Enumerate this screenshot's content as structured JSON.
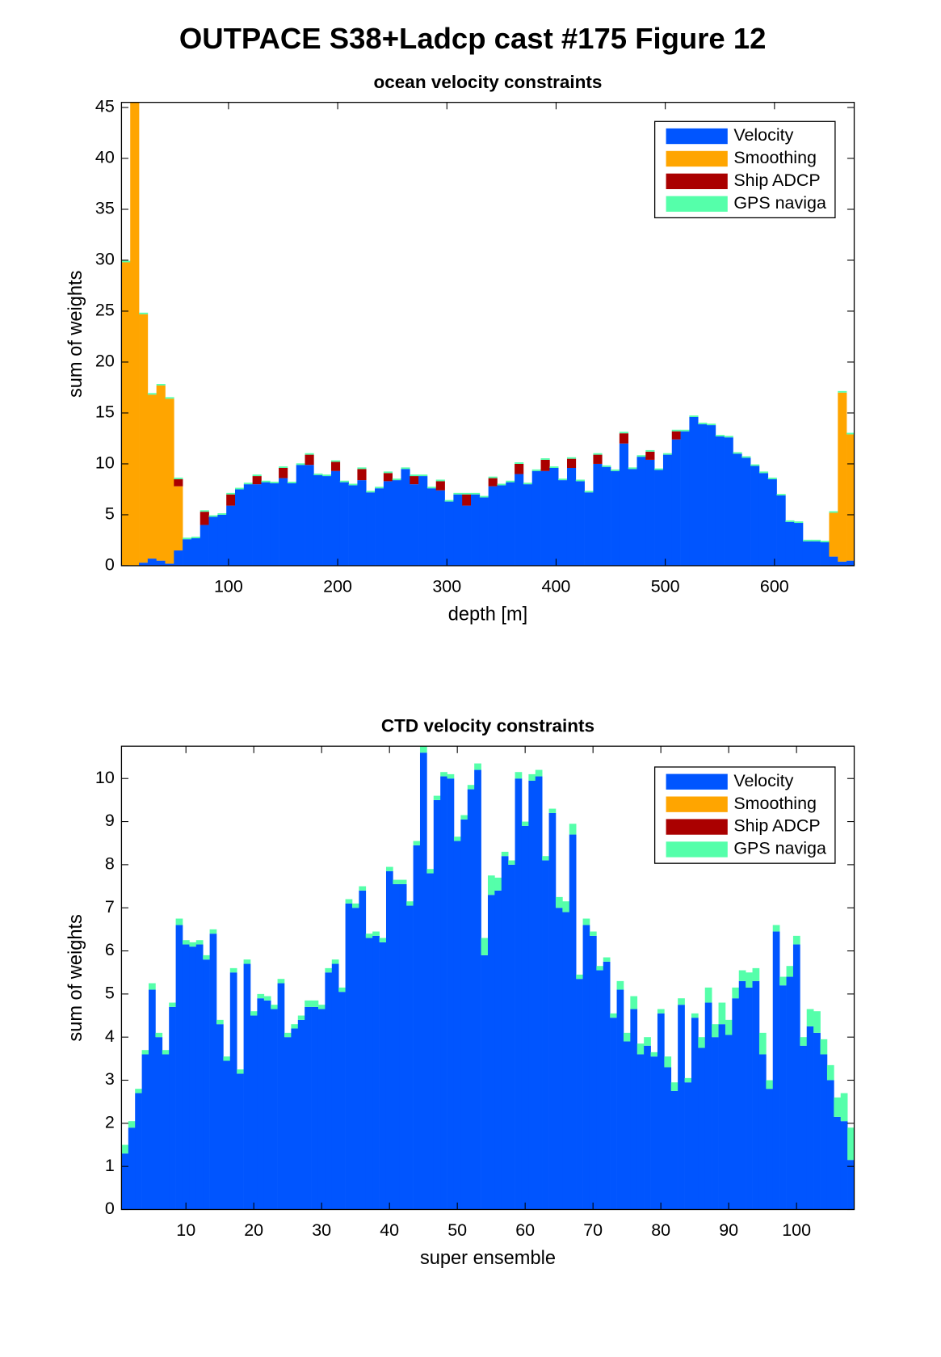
{
  "title": "OUTPACE S38+Ladcp cast #175  Figure 12",
  "chart_data": [
    {
      "type": "stacked_bar",
      "title": "ocean velocity constraints",
      "xlabel": "depth [m]",
      "ylabel": "sum of weights",
      "x": [
        6,
        14,
        22,
        30,
        38,
        46,
        54,
        62,
        70,
        78,
        86,
        94,
        102,
        110,
        118,
        126,
        134,
        142,
        150,
        158,
        166,
        174,
        182,
        190,
        198,
        206,
        214,
        222,
        230,
        238,
        246,
        254,
        262,
        270,
        278,
        286,
        294,
        302,
        310,
        318,
        326,
        334,
        342,
        350,
        358,
        366,
        374,
        382,
        390,
        398,
        406,
        414,
        422,
        430,
        438,
        446,
        454,
        462,
        470,
        478,
        486,
        494,
        502,
        510,
        518,
        526,
        534,
        542,
        550,
        558,
        566,
        574,
        582,
        590,
        598,
        606,
        614,
        622,
        630,
        638,
        646,
        654,
        662,
        670
      ],
      "series": [
        {
          "name": "Velocity",
          "color": "#0055ff",
          "values": [
            0,
            0,
            0.3,
            0.7,
            0.5,
            0.2,
            1.5,
            2.6,
            2.7,
            4.0,
            4.8,
            5.0,
            5.9,
            7.5,
            8.0,
            8.0,
            8.2,
            8.1,
            8.6,
            8.1,
            9.9,
            9.9,
            8.9,
            8.8,
            9.3,
            8.2,
            7.9,
            8.4,
            7.2,
            7.6,
            8.3,
            8.4,
            9.5,
            8.0,
            8.8,
            7.6,
            7.4,
            6.3,
            7.0,
            5.9,
            7.0,
            6.7,
            7.8,
            7.9,
            8.2,
            9.0,
            8.0,
            9.3,
            9.3,
            9.6,
            8.4,
            9.6,
            8.3,
            7.2,
            10.0,
            9.7,
            9.3,
            12.0,
            9.5,
            10.7,
            10.4,
            9.4,
            10.9,
            12.4,
            13.2,
            14.6,
            13.9,
            13.8,
            12.7,
            12.6,
            11.0,
            10.6,
            9.8,
            9.1,
            8.5,
            6.9,
            4.3,
            4.2,
            2.4,
            2.4,
            2.3,
            0.9,
            0.4,
            0.5
          ]
        },
        {
          "name": "Smoothing",
          "color": "#ffa500",
          "values": [
            29.8,
            45.5,
            24.4,
            16.1,
            17.2,
            16.2,
            6.3,
            0,
            0,
            0,
            0,
            0,
            0,
            0,
            0,
            0,
            0,
            0,
            0,
            0,
            0,
            0,
            0,
            0,
            0,
            0,
            0,
            0,
            0,
            0,
            0,
            0,
            0,
            0,
            0,
            0,
            0,
            0,
            0,
            0,
            0,
            0,
            0,
            0,
            0,
            0,
            0,
            0,
            0,
            0,
            0,
            0,
            0,
            0,
            0,
            0,
            0,
            0,
            0,
            0,
            0,
            0,
            0,
            0,
            0,
            0,
            0,
            0,
            0,
            0,
            0,
            0,
            0,
            0,
            0,
            0,
            0,
            0,
            0,
            0,
            0,
            4.3,
            16.6,
            12.4
          ]
        },
        {
          "name": "Ship ADCP",
          "color": "#aa0000",
          "values": [
            0,
            0,
            0,
            0,
            0,
            0,
            0.7,
            0,
            0,
            1.3,
            0,
            0,
            1.1,
            0,
            0,
            0.8,
            0,
            0,
            1.0,
            0,
            0,
            1.0,
            0,
            0,
            0.9,
            0,
            0,
            1.1,
            0,
            0,
            0.8,
            0,
            0,
            0.8,
            0,
            0,
            0.9,
            0,
            0,
            1.1,
            0,
            0,
            0.8,
            0,
            0,
            1.0,
            0,
            0,
            1.1,
            0,
            0,
            0.9,
            0,
            0,
            0.9,
            0,
            0,
            1.0,
            0,
            0,
            0.8,
            0,
            0,
            0.8,
            0,
            0,
            0,
            0,
            0,
            0,
            0,
            0,
            0,
            0,
            0,
            0,
            0,
            0,
            0,
            0,
            0,
            0,
            0,
            0
          ]
        },
        {
          "name": "GPS naviga",
          "color": "#55ffaa",
          "values": [
            0.15,
            0.15,
            0.15,
            0.15,
            0.15,
            0.15,
            0.15,
            0.15,
            0.15,
            0.15,
            0.15,
            0.15,
            0.15,
            0.15,
            0.15,
            0.15,
            0.15,
            0.15,
            0.15,
            0.15,
            0.15,
            0.15,
            0.15,
            0.15,
            0.15,
            0.15,
            0.15,
            0.15,
            0.15,
            0.15,
            0.15,
            0.15,
            0.15,
            0.15,
            0.15,
            0.15,
            0.15,
            0.15,
            0.15,
            0.15,
            0.15,
            0.15,
            0.15,
            0.15,
            0.15,
            0.15,
            0.15,
            0.15,
            0.15,
            0.15,
            0.15,
            0.15,
            0.15,
            0.15,
            0.15,
            0.15,
            0.15,
            0.15,
            0.15,
            0.15,
            0.15,
            0.15,
            0.15,
            0.15,
            0.15,
            0.15,
            0.15,
            0.15,
            0.15,
            0.15,
            0.15,
            0.15,
            0.15,
            0.15,
            0.15,
            0.15,
            0.15,
            0.15,
            0.15,
            0.15,
            0.15,
            0.15,
            0.15,
            0.15
          ]
        }
      ],
      "xlim": [
        2,
        673
      ],
      "xticks": [
        100,
        200,
        300,
        400,
        500,
        600
      ],
      "ylim": [
        0,
        45.5
      ],
      "yticks": [
        0,
        5,
        10,
        15,
        20,
        25,
        30,
        35,
        40,
        45
      ],
      "legend": "northeast"
    },
    {
      "type": "stacked_bar",
      "title": "CTD velocity constraints",
      "xlabel": "super ensemble",
      "ylabel": "sum of weights",
      "x": [
        1,
        2,
        3,
        4,
        5,
        6,
        7,
        8,
        9,
        10,
        11,
        12,
        13,
        14,
        15,
        16,
        17,
        18,
        19,
        20,
        21,
        22,
        23,
        24,
        25,
        26,
        27,
        28,
        29,
        30,
        31,
        32,
        33,
        34,
        35,
        36,
        37,
        38,
        39,
        40,
        41,
        42,
        43,
        44,
        45,
        46,
        47,
        48,
        49,
        50,
        51,
        52,
        53,
        54,
        55,
        56,
        57,
        58,
        59,
        60,
        61,
        62,
        63,
        64,
        65,
        66,
        67,
        68,
        69,
        70,
        71,
        72,
        73,
        74,
        75,
        76,
        77,
        78,
        79,
        80,
        81,
        82,
        83,
        84,
        85,
        86,
        87,
        88,
        89,
        90,
        91,
        92,
        93,
        94,
        95,
        96,
        97,
        98,
        99,
        100,
        101,
        102,
        103,
        104,
        105,
        106,
        107,
        108
      ],
      "series": [
        {
          "name": "Velocity",
          "color": "#0055ff",
          "values": [
            1.3,
            1.9,
            2.7,
            3.6,
            5.1,
            4.0,
            3.6,
            4.7,
            6.6,
            6.15,
            6.1,
            6.15,
            5.8,
            6.4,
            4.3,
            3.45,
            5.5,
            3.15,
            5.7,
            4.5,
            4.9,
            4.85,
            4.65,
            5.25,
            4.0,
            4.2,
            4.4,
            4.7,
            4.7,
            4.65,
            5.5,
            5.7,
            5.05,
            7.1,
            7.0,
            7.4,
            6.3,
            6.35,
            6.2,
            7.85,
            7.55,
            7.55,
            7.05,
            8.45,
            10.6,
            7.8,
            9.5,
            10.05,
            10.0,
            8.55,
            9.05,
            9.75,
            10.2,
            5.9,
            7.3,
            7.4,
            8.2,
            8.0,
            10.0,
            8.9,
            9.95,
            10.05,
            8.1,
            9.2,
            7.0,
            6.9,
            8.7,
            5.35,
            6.6,
            6.35,
            5.55,
            5.75,
            4.45,
            5.1,
            3.9,
            4.65,
            3.6,
            3.8,
            3.55,
            4.55,
            3.3,
            2.75,
            4.75,
            2.95,
            4.45,
            3.75,
            4.8,
            4.0,
            4.3,
            4.05,
            4.9,
            5.3,
            5.15,
            5.3,
            3.6,
            2.8,
            6.45,
            5.2,
            5.4,
            6.15,
            3.8,
            4.25,
            4.1,
            3.6,
            3.0,
            2.15,
            2.05,
            1.15
          ]
        },
        {
          "name": "Smoothing",
          "color": "#ffa500",
          "values": [
            0,
            0,
            0,
            0,
            0,
            0,
            0,
            0,
            0,
            0,
            0,
            0,
            0,
            0,
            0,
            0,
            0,
            0,
            0,
            0,
            0,
            0,
            0,
            0,
            0,
            0,
            0,
            0,
            0,
            0,
            0,
            0,
            0,
            0,
            0,
            0,
            0,
            0,
            0,
            0,
            0,
            0,
            0,
            0,
            0,
            0,
            0,
            0,
            0,
            0,
            0,
            0,
            0,
            0,
            0,
            0,
            0,
            0,
            0,
            0,
            0,
            0,
            0,
            0,
            0,
            0,
            0,
            0,
            0,
            0,
            0,
            0,
            0,
            0,
            0,
            0,
            0,
            0,
            0,
            0,
            0,
            0,
            0,
            0,
            0,
            0,
            0,
            0,
            0,
            0,
            0,
            0,
            0,
            0,
            0,
            0,
            0,
            0,
            0,
            0,
            0,
            0,
            0,
            0,
            0,
            0,
            0,
            0
          ]
        },
        {
          "name": "Ship ADCP",
          "color": "#aa0000",
          "values": [
            0,
            0,
            0,
            0,
            0,
            0,
            0,
            0,
            0,
            0,
            0,
            0,
            0,
            0,
            0,
            0,
            0,
            0,
            0,
            0,
            0,
            0,
            0,
            0,
            0,
            0,
            0,
            0,
            0,
            0,
            0,
            0,
            0,
            0,
            0,
            0,
            0,
            0,
            0,
            0,
            0,
            0,
            0,
            0,
            0,
            0,
            0,
            0,
            0,
            0,
            0,
            0,
            0,
            0,
            0,
            0,
            0,
            0,
            0,
            0,
            0,
            0,
            0,
            0,
            0,
            0,
            0,
            0,
            0,
            0,
            0,
            0,
            0,
            0,
            0,
            0,
            0,
            0,
            0,
            0,
            0,
            0,
            0,
            0,
            0,
            0,
            0,
            0,
            0,
            0,
            0,
            0,
            0,
            0,
            0,
            0,
            0,
            0,
            0,
            0,
            0,
            0,
            0,
            0,
            0,
            0,
            0,
            0
          ]
        },
        {
          "name": "GPS naviga",
          "color": "#55ffaa",
          "values": [
            0.2,
            0.15,
            0.1,
            0.1,
            0.15,
            0.1,
            0.1,
            0.1,
            0.15,
            0.1,
            0.1,
            0.1,
            0.1,
            0.1,
            0.1,
            0.1,
            0.1,
            0.1,
            0.1,
            0.1,
            0.1,
            0.1,
            0.1,
            0.1,
            0.1,
            0.1,
            0.1,
            0.15,
            0.15,
            0.1,
            0.1,
            0.1,
            0.1,
            0.1,
            0.1,
            0.1,
            0.1,
            0.1,
            0.1,
            0.1,
            0.1,
            0.1,
            0.1,
            0.1,
            0.15,
            0.1,
            0.1,
            0.1,
            0.1,
            0.1,
            0.1,
            0.1,
            0.15,
            0.4,
            0.45,
            0.3,
            0.1,
            0.1,
            0.15,
            0.1,
            0.15,
            0.15,
            0.1,
            0.1,
            0.25,
            0.25,
            0.25,
            0.1,
            0.15,
            0.1,
            0.1,
            0.1,
            0.1,
            0.2,
            0.2,
            0.3,
            0.25,
            0.2,
            0.1,
            0.1,
            0.25,
            0.2,
            0.15,
            0.1,
            0.1,
            0.25,
            0.35,
            0.3,
            0.5,
            0.35,
            0.25,
            0.25,
            0.35,
            0.3,
            0.5,
            0.2,
            0.15,
            0.2,
            0.25,
            0.2,
            0.2,
            0.4,
            0.5,
            0.35,
            0.35,
            0.45,
            0.65,
            0.75
          ]
        }
      ],
      "xlim": [
        0.5,
        108.5
      ],
      "xticks": [
        10,
        20,
        30,
        40,
        50,
        60,
        70,
        80,
        90,
        100
      ],
      "ylim": [
        0,
        10.75
      ],
      "yticks": [
        0,
        1,
        2,
        3,
        4,
        5,
        6,
        7,
        8,
        9,
        10
      ],
      "legend": "northeast"
    }
  ]
}
